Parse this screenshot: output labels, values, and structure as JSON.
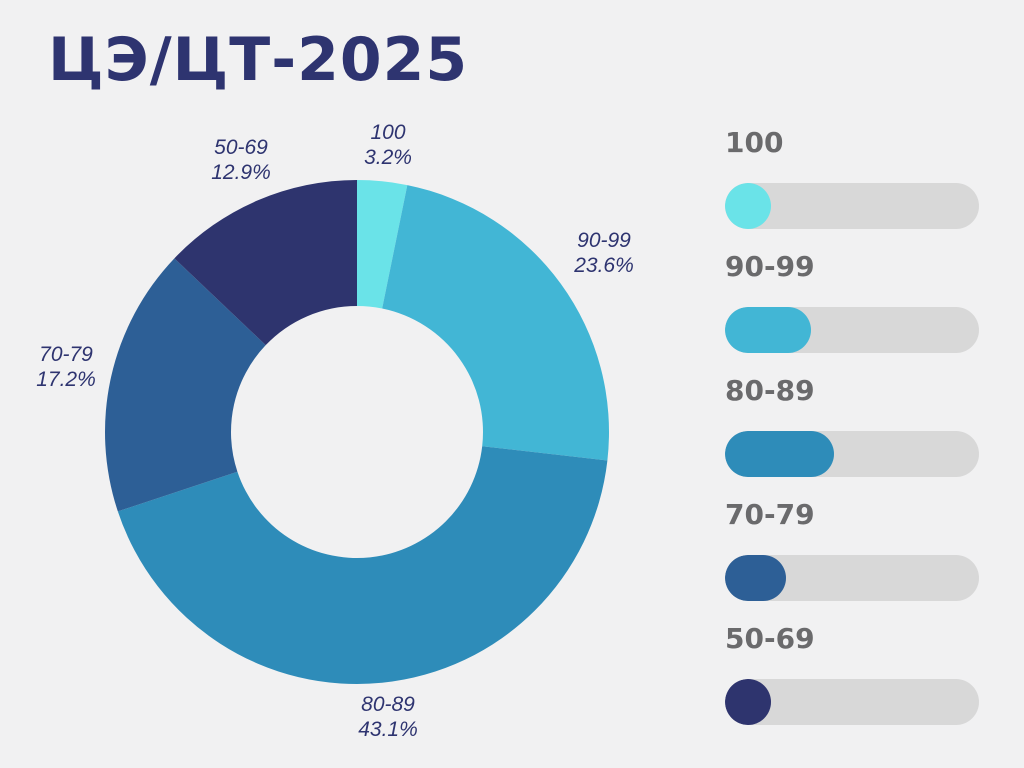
{
  "title": "ЦЭ/ЦТ-2025",
  "chart_data": {
    "type": "pie",
    "donut": true,
    "categories": [
      "100",
      "90-99",
      "80-89",
      "70-79",
      "50-69"
    ],
    "values": [
      3.2,
      23.6,
      43.1,
      17.2,
      12.9
    ],
    "labels": [
      "3.2%",
      "23.6%",
      "43.1%",
      "17.2%",
      "12.9%"
    ],
    "colors": [
      "#6ae3e8",
      "#42b6d5",
      "#2e8cb9",
      "#2d5f96",
      "#2e346e"
    ]
  },
  "legend": {
    "items": [
      {
        "label": "100",
        "color": "#6ae3e8",
        "fill": 0.18
      },
      {
        "label": "90-99",
        "color": "#42b6d5",
        "fill": 0.34
      },
      {
        "label": "80-89",
        "color": "#2e8cb9",
        "fill": 0.43
      },
      {
        "label": "70-79",
        "color": "#2d5f96",
        "fill": 0.24
      },
      {
        "label": "50-69",
        "color": "#2e346e",
        "fill": 0.18
      }
    ]
  }
}
